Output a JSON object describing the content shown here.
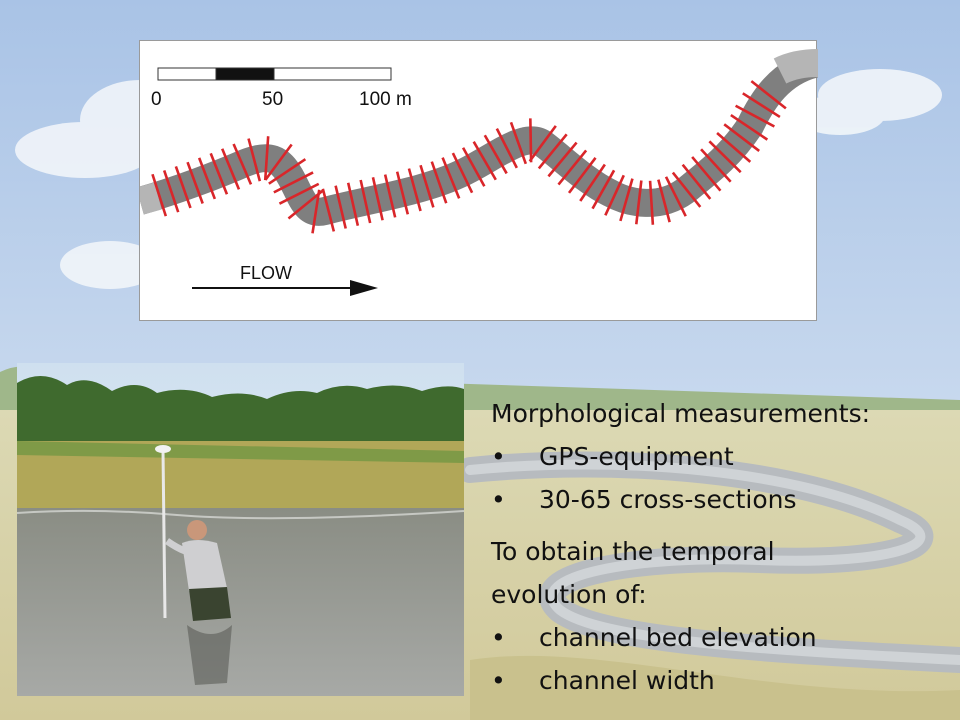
{
  "diagram": {
    "scale_labels": [
      "0",
      "50",
      "100 m"
    ],
    "flow_label": "FLOW",
    "measured_cross_sections_color": "#d9262a",
    "channel_color": "#7f7f7f"
  },
  "text": {
    "heading1": "Morphological measurements:",
    "bullets1": [
      "GPS-equipment",
      "30-65 cross-sections"
    ],
    "heading2_lines": [
      "To obtain the temporal",
      "evolution of:"
    ],
    "bullets2": [
      "channel bed elevation",
      "channel width"
    ],
    "bullet_char": "•"
  }
}
